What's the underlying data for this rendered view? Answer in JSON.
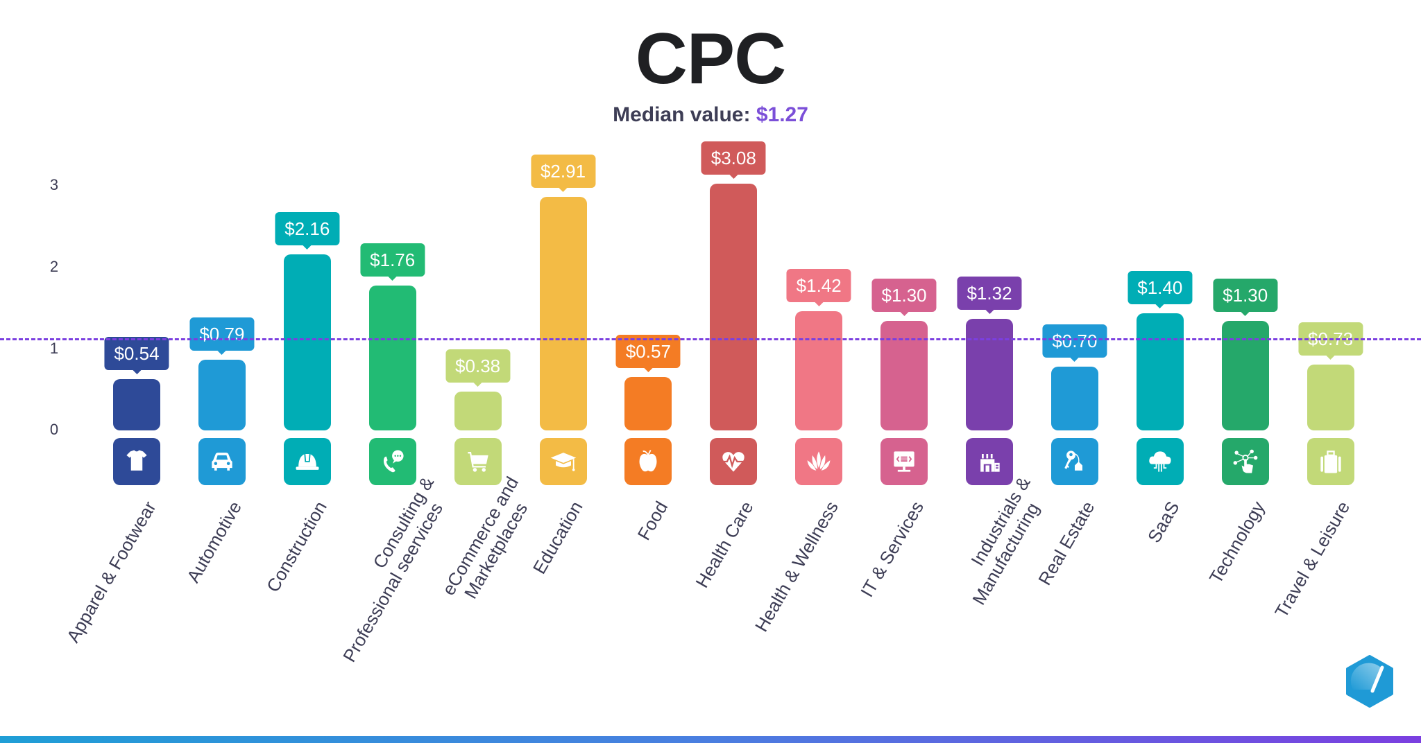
{
  "title": "CPC",
  "subtitle": {
    "label": "Median value:",
    "value": "$1.27"
  },
  "y_ticks": [
    "3",
    "2",
    "1",
    "0"
  ],
  "colors": {
    "median_line": "#7b3fe0",
    "text": "#3d3d55",
    "accent": "#7b4fd8"
  },
  "chart_data": {
    "type": "bar",
    "title": "CPC",
    "subtitle": "Median value: $1.27",
    "xlabel": "",
    "ylabel": "",
    "ylim": [
      0,
      3.2
    ],
    "yticks": [
      0,
      1,
      2,
      3
    ],
    "grid": false,
    "median": 1.27,
    "categories": [
      "Apparel & Footwear",
      "Automotive",
      "Construction",
      "Consulting & Professional seervices",
      "eCommerce and Marketplaces",
      "Education",
      "Food",
      "Health Care",
      "Health & Wellness",
      "IT & Services",
      "Industrials & Manufacturing",
      "Real Estate",
      "SaaS",
      "Technology",
      "Travel & Leisure"
    ],
    "values": [
      0.54,
      0.79,
      2.16,
      1.76,
      0.38,
      2.91,
      0.57,
      3.08,
      1.42,
      1.3,
      1.32,
      0.7,
      1.4,
      1.3,
      0.73
    ],
    "value_labels": [
      "$0.54",
      "$0.79",
      "$2.16",
      "$1.76",
      "$0.38",
      "$2.91",
      "$0.57",
      "$3.08",
      "$1.42",
      "$1.30",
      "$1.32",
      "$0.70",
      "$1.40",
      "$1.30",
      "$0.73"
    ]
  },
  "bars": [
    {
      "label_lines": [
        "Apparel & Footwear"
      ],
      "value": 0.54,
      "value_label": "$0.54",
      "color": "#2e4a98",
      "icon": "tshirt-icon"
    },
    {
      "label_lines": [
        "Automotive"
      ],
      "value": 0.79,
      "value_label": "$0.79",
      "color": "#1f9ad6",
      "icon": "car-icon"
    },
    {
      "label_lines": [
        "Construction"
      ],
      "value": 2.16,
      "value_label": "$2.16",
      "color": "#00adb5",
      "icon": "hardhat-icon"
    },
    {
      "label_lines": [
        "Consulting &",
        "Professional seervices"
      ],
      "value": 1.76,
      "value_label": "$1.76",
      "color": "#22bb74",
      "icon": "phone-chat-icon"
    },
    {
      "label_lines": [
        "eCommerce and",
        "Marketplaces"
      ],
      "value": 0.38,
      "value_label": "$0.38",
      "color": "#c2d978",
      "icon": "cart-icon"
    },
    {
      "label_lines": [
        "Education"
      ],
      "value": 2.91,
      "value_label": "$2.91",
      "color": "#f3bb45",
      "icon": "graduation-cap-icon"
    },
    {
      "label_lines": [
        "Food"
      ],
      "value": 0.57,
      "value_label": "$0.57",
      "color": "#f47c24",
      "icon": "apple-icon"
    },
    {
      "label_lines": [
        "Health Care"
      ],
      "value": 3.08,
      "value_label": "$3.08",
      "color": "#d05a5a",
      "icon": "heartbeat-icon"
    },
    {
      "label_lines": [
        "Health & Wellness"
      ],
      "value": 1.42,
      "value_label": "$1.42",
      "color": "#f07785",
      "icon": "lotus-icon"
    },
    {
      "label_lines": [
        "IT & Services"
      ],
      "value": 1.3,
      "value_label": "$1.30",
      "color": "#d6628f",
      "icon": "monitor-code-icon"
    },
    {
      "label_lines": [
        "Industrials &",
        "Manufacturing"
      ],
      "value": 1.32,
      "value_label": "$1.32",
      "color": "#7a40ac",
      "icon": "factory-icon"
    },
    {
      "label_lines": [
        "Real Estate"
      ],
      "value": 0.7,
      "value_label": "$0.70",
      "color": "#1f9ad6",
      "icon": "house-key-icon"
    },
    {
      "label_lines": [
        "SaaS"
      ],
      "value": 1.4,
      "value_label": "$1.40",
      "color": "#00adb5",
      "icon": "cloud-icon"
    },
    {
      "label_lines": [
        "Technology"
      ],
      "value": 1.3,
      "value_label": "$1.30",
      "color": "#25a86a",
      "icon": "touch-network-icon"
    },
    {
      "label_lines": [
        "Travel & Leisure"
      ],
      "value": 0.73,
      "value_label": "$0.73",
      "color": "#c2d978",
      "icon": "suitcase-icon"
    }
  ]
}
